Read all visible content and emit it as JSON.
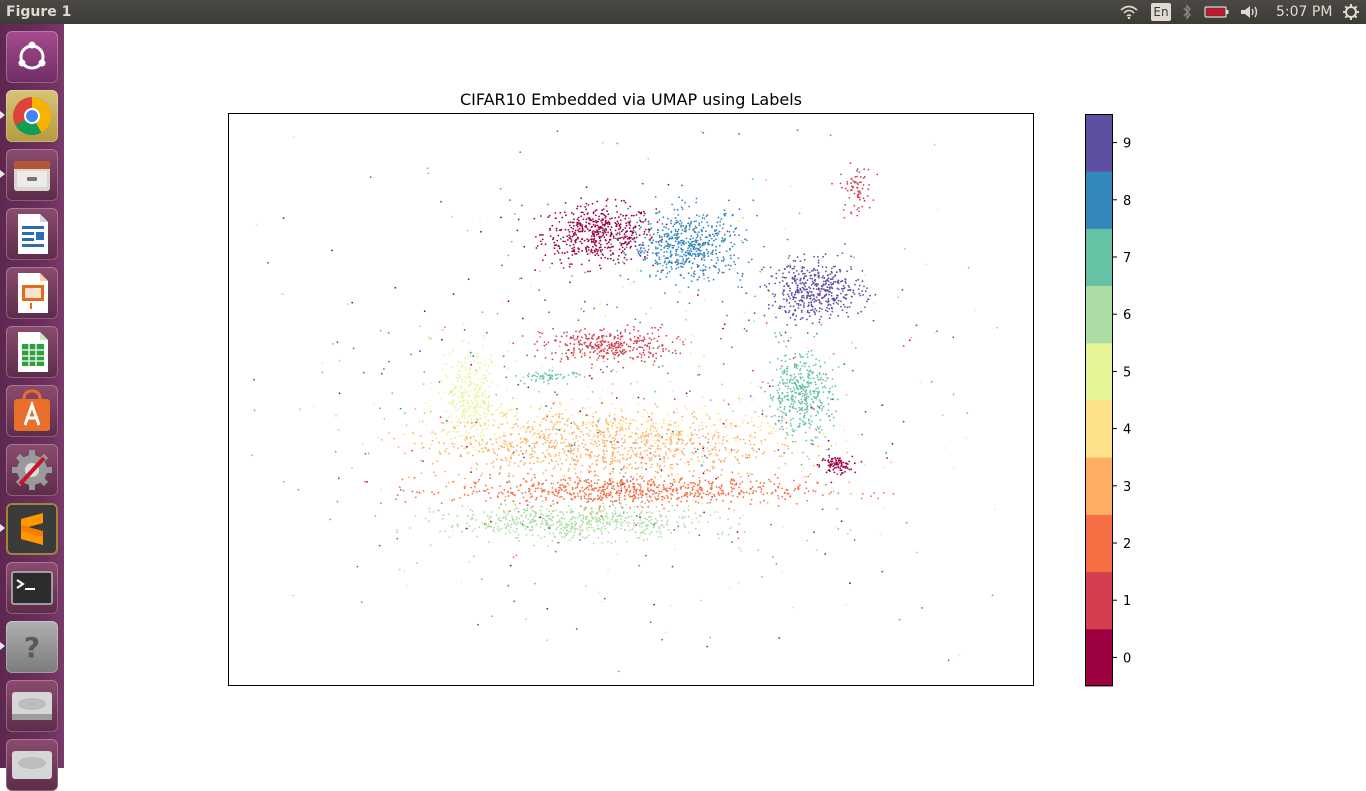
{
  "window": {
    "title": "Figure 1"
  },
  "top_panel": {
    "keyboard_layout": "En",
    "clock": "5:07 PM",
    "icons": [
      "wifi-icon",
      "keyboard-layout-icon",
      "bluetooth-icon",
      "battery-icon",
      "volume-icon",
      "settings-gear-icon"
    ]
  },
  "launcher": {
    "items": [
      {
        "name": "ubuntu-dash-icon"
      },
      {
        "name": "chrome-icon"
      },
      {
        "name": "files-icon"
      },
      {
        "name": "libreoffice-writer-icon"
      },
      {
        "name": "libreoffice-impress-icon"
      },
      {
        "name": "libreoffice-calc-icon"
      },
      {
        "name": "software-center-icon"
      },
      {
        "name": "system-settings-icon"
      },
      {
        "name": "sublime-text-icon"
      },
      {
        "name": "terminal-icon"
      },
      {
        "name": "help-icon"
      },
      {
        "name": "disk-drive-icon"
      },
      {
        "name": "disk-drive-2-icon"
      }
    ]
  },
  "chart_data": {
    "type": "scatter",
    "title": "CIFAR10 Embedded via UMAP using Labels",
    "xlabel": "",
    "ylabel": "",
    "axes_ticks_visible": false,
    "grid": false,
    "colormap": "Spectral",
    "colorbar": {
      "ticks": [
        "0",
        "1",
        "2",
        "3",
        "4",
        "5",
        "6",
        "7",
        "8",
        "9"
      ],
      "colors": [
        "#9e0142",
        "#d53e4f",
        "#f46d43",
        "#fdae61",
        "#fee08b",
        "#e6f598",
        "#abdda4",
        "#66c2a5",
        "#3288bd",
        "#5e4fa2"
      ]
    },
    "clusters": [
      {
        "label": 0,
        "color": "#9e0142",
        "center": [
          0.46,
          0.79
        ],
        "spread": [
          0.07,
          0.05
        ],
        "count": 520
      },
      {
        "label": 0,
        "color": "#9e0142",
        "center": [
          0.755,
          0.385
        ],
        "spread": [
          0.02,
          0.015
        ],
        "count": 90
      },
      {
        "label": 1,
        "color": "#d53e4f",
        "center": [
          0.47,
          0.595
        ],
        "spread": [
          0.08,
          0.03
        ],
        "count": 320
      },
      {
        "label": 1,
        "color": "#d53e4f",
        "center": [
          0.78,
          0.87
        ],
        "spread": [
          0.02,
          0.04
        ],
        "count": 70
      },
      {
        "label": 2,
        "color": "#f46d43",
        "center": [
          0.5,
          0.34
        ],
        "spread": [
          0.22,
          0.025
        ],
        "count": 700
      },
      {
        "label": 3,
        "color": "#fdae61",
        "center": [
          0.46,
          0.42
        ],
        "spread": [
          0.22,
          0.06
        ],
        "count": 900
      },
      {
        "label": 4,
        "color": "#fee08b",
        "center": [
          0.5,
          0.45
        ],
        "spread": [
          0.22,
          0.04
        ],
        "count": 250
      },
      {
        "label": 5,
        "color": "#e6f598",
        "center": [
          0.3,
          0.5
        ],
        "spread": [
          0.04,
          0.08
        ],
        "count": 320
      },
      {
        "label": 6,
        "color": "#abdda4",
        "center": [
          0.43,
          0.285
        ],
        "spread": [
          0.16,
          0.03
        ],
        "count": 600
      },
      {
        "label": 7,
        "color": "#66c2a5",
        "center": [
          0.71,
          0.51
        ],
        "spread": [
          0.04,
          0.07
        ],
        "count": 420
      },
      {
        "label": 7,
        "color": "#66c2a5",
        "center": [
          0.4,
          0.54
        ],
        "spread": [
          0.04,
          0.01
        ],
        "count": 60
      },
      {
        "label": 8,
        "color": "#3288bd",
        "center": [
          0.57,
          0.77
        ],
        "spread": [
          0.07,
          0.06
        ],
        "count": 560
      },
      {
        "label": 9,
        "color": "#5e4fa2",
        "center": [
          0.73,
          0.69
        ],
        "spread": [
          0.06,
          0.05
        ],
        "count": 480
      }
    ],
    "background_noise_count": 700
  }
}
